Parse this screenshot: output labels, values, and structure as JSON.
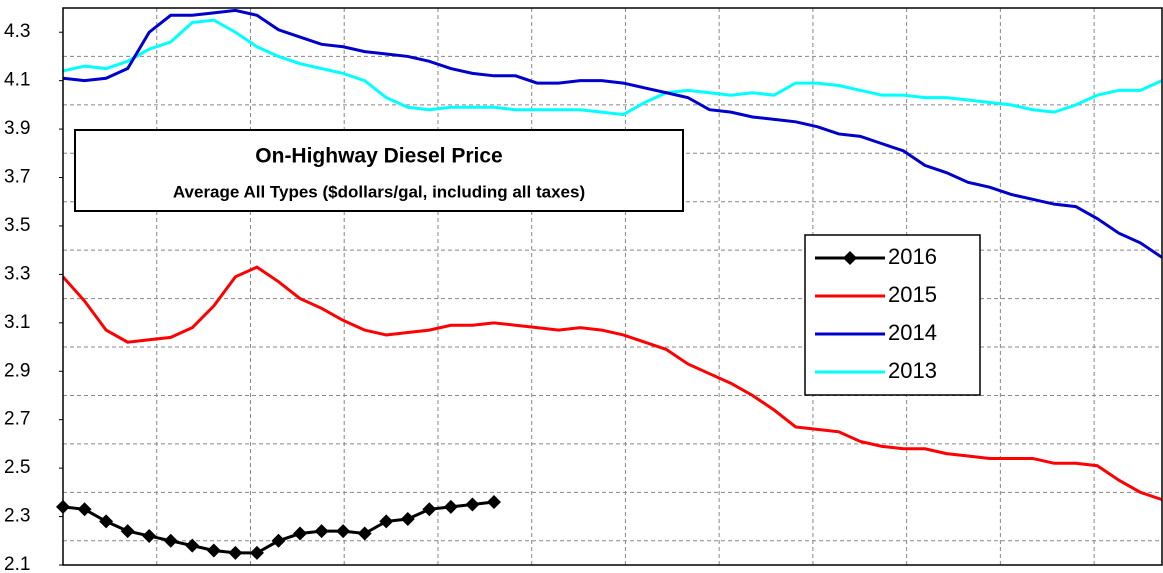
{
  "chart_data": {
    "type": "line",
    "title": "On-Highway Diesel Price",
    "subtitle": "Average All Types ($dollars/gal, including all taxes)",
    "x": [
      0,
      1,
      2,
      3,
      4,
      5,
      6,
      7,
      8,
      9,
      10,
      11,
      12,
      13,
      14,
      15,
      16,
      17,
      18,
      19,
      20,
      21,
      22,
      23,
      24,
      25,
      26,
      27,
      28,
      29,
      30,
      31,
      32,
      33,
      34,
      35,
      36,
      37,
      38,
      39,
      40,
      41,
      42,
      43,
      44,
      45,
      46,
      47,
      48,
      49,
      50,
      51
    ],
    "xlim": [
      0,
      51
    ],
    "xgrid": [
      0,
      4.35,
      8.7,
      13.05,
      17.4,
      21.75,
      26.1,
      30.45,
      34.8,
      39.15,
      43.5,
      47.85
    ],
    "ylim": [
      2.1,
      4.4
    ],
    "yticks": [
      2.1,
      2.3,
      2.5,
      2.7,
      2.9,
      3.1,
      3.3,
      3.5,
      3.7,
      3.9,
      4.1,
      4.3
    ],
    "ygrid": [
      2.2,
      2.4,
      2.6,
      2.8,
      3.0,
      3.2,
      3.4,
      3.6,
      3.8,
      4.0,
      4.2,
      4.4
    ],
    "grid": true,
    "series": [
      {
        "name": "2016",
        "color": "#000000",
        "marker": "diamond",
        "values": [
          2.34,
          2.33,
          2.28,
          2.24,
          2.22,
          2.2,
          2.18,
          2.16,
          2.15,
          2.15,
          2.2,
          2.23,
          2.24,
          2.24,
          2.23,
          2.28,
          2.29,
          2.33,
          2.34,
          2.35,
          2.36,
          null,
          null,
          null,
          null,
          null,
          null,
          null,
          null,
          null,
          null,
          null,
          null,
          null,
          null,
          null,
          null,
          null,
          null,
          null,
          null,
          null,
          null,
          null,
          null,
          null,
          null,
          null,
          null,
          null,
          null,
          null
        ]
      },
      {
        "name": "2015",
        "color": "#ff0000",
        "values": [
          3.29,
          3.19,
          3.07,
          3.02,
          3.03,
          3.04,
          3.08,
          3.17,
          3.29,
          3.33,
          3.27,
          3.2,
          3.16,
          3.11,
          3.07,
          3.05,
          3.06,
          3.07,
          3.09,
          3.09,
          3.1,
          3.09,
          3.08,
          3.07,
          3.08,
          3.07,
          3.05,
          3.02,
          2.99,
          2.93,
          2.89,
          2.85,
          2.8,
          2.74,
          2.67,
          2.66,
          2.65,
          2.61,
          2.59,
          2.58,
          2.58,
          2.56,
          2.55,
          2.54,
          2.54,
          2.54,
          2.52,
          2.52,
          2.51,
          2.45,
          2.4,
          2.37
        ]
      },
      {
        "name": "2014",
        "color": "#0000cc",
        "values": [
          4.11,
          4.1,
          4.11,
          4.15,
          4.3,
          4.37,
          4.37,
          4.38,
          4.39,
          4.37,
          4.31,
          4.28,
          4.25,
          4.24,
          4.22,
          4.21,
          4.2,
          4.18,
          4.15,
          4.13,
          4.12,
          4.12,
          4.09,
          4.09,
          4.1,
          4.1,
          4.09,
          4.07,
          4.05,
          4.03,
          3.98,
          3.97,
          3.95,
          3.94,
          3.93,
          3.91,
          3.88,
          3.87,
          3.84,
          3.81,
          3.75,
          3.72,
          3.68,
          3.66,
          3.63,
          3.61,
          3.59,
          3.58,
          3.53,
          3.47,
          3.43,
          3.37
        ]
      },
      {
        "name": "2013",
        "color": "#00ffff",
        "values": [
          4.14,
          4.16,
          4.15,
          4.18,
          4.23,
          4.26,
          4.34,
          4.35,
          4.3,
          4.24,
          4.2,
          4.17,
          4.15,
          4.13,
          4.1,
          4.03,
          3.99,
          3.98,
          3.99,
          3.99,
          3.99,
          3.98,
          3.98,
          3.98,
          3.98,
          3.97,
          3.96,
          4.01,
          4.05,
          4.06,
          4.05,
          4.04,
          4.05,
          4.04,
          4.09,
          4.09,
          4.08,
          4.06,
          4.04,
          4.04,
          4.03,
          4.03,
          4.02,
          4.01,
          4.0,
          3.98,
          3.97,
          4.0,
          4.04,
          4.06,
          4.06,
          4.1
        ]
      }
    ]
  }
}
